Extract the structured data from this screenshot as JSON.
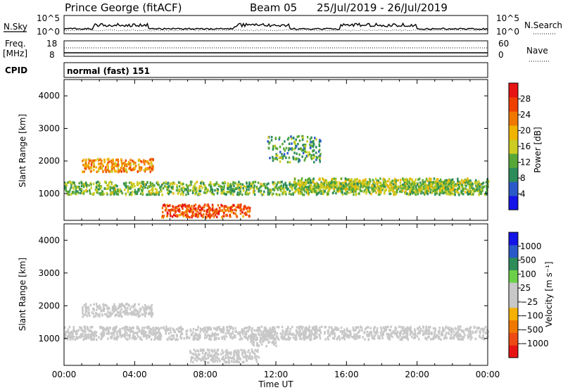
{
  "header": {
    "station": "Prince George (fitACF)",
    "beam": "Beam 05",
    "dates": "25/Jul/2019 - 26/Jul/2019"
  },
  "strip_labels": {
    "nsky": "N.Sky",
    "nsky_ticks": [
      "10^5",
      "10^0"
    ],
    "nsearch": "N.Search",
    "nsearch_ticks": [
      "10^5",
      "10^0"
    ],
    "freq_a": "Freq.",
    "freq_b": "[MHz]",
    "freq_ticks": [
      "18",
      "8"
    ],
    "nave": "Nave",
    "nave_ticks": [
      "60",
      "0"
    ],
    "cpid": "CPID",
    "cpid_value": "normal (fast) 151"
  },
  "colors": {
    "power_scale": [
      "#1414e8",
      "#2a5ac8",
      "#2c8c5a",
      "#58a838",
      "#cccc22",
      "#f0b400",
      "#f07800",
      "#f04000",
      "#e81414"
    ],
    "velocity_scale": [
      "#e81414",
      "#ee4a14",
      "#f07800",
      "#f5b000",
      "#c8c8c8",
      "#c8c8c8",
      "#6cd048",
      "#2c8c5a",
      "#2a5ac8",
      "#1414e8"
    ]
  },
  "chart_data": [
    {
      "type": "heatmap",
      "title": "Power",
      "ylabel": "Slant Range [km]",
      "ylim": [
        180,
        4500
      ],
      "yticks": [
        "4000",
        "3000",
        "2000",
        "1000"
      ],
      "xlim": [
        "00:00",
        "24:00"
      ],
      "colorbar": {
        "label": "Power [dB]",
        "ticks": [
          "28",
          "24",
          "20",
          "16",
          "12",
          "8",
          "4"
        ],
        "range": [
          0,
          30
        ]
      },
      "echo_regions": [
        {
          "t": [
            0.0,
            24.0
          ],
          "range_km": [
            1000,
            1400
          ],
          "value_db": 12
        },
        {
          "t": [
            1.0,
            5.0
          ],
          "range_km": [
            1700,
            2100
          ],
          "value_db": 20
        },
        {
          "t": [
            5.5,
            10.5
          ],
          "range_km": [
            300,
            700
          ],
          "value_db": 24
        },
        {
          "t": [
            13.0,
            24.0
          ],
          "range_km": [
            1100,
            1500
          ],
          "value_db": 14
        },
        {
          "t": [
            11.5,
            14.5
          ],
          "range_km": [
            2000,
            2800
          ],
          "value_db": 10
        }
      ]
    },
    {
      "type": "heatmap",
      "title": "Velocity",
      "ylabel": "Slant Range [km]",
      "ylim": [
        180,
        4500
      ],
      "yticks": [
        "4000",
        "3000",
        "2000",
        "1000"
      ],
      "xlim": [
        "00:00",
        "24:00"
      ],
      "xticks": [
        "00:00",
        "04:00",
        "08:00",
        "12:00",
        "16:00",
        "20:00",
        "00:00"
      ],
      "xlabel": "Time UT",
      "colorbar": {
        "label": "Velocity [m s⁻¹]",
        "ticks": [
          "1000",
          "500",
          "100",
          "25",
          "−25",
          "−100",
          "−500",
          "−1000"
        ],
        "range": [
          -1000,
          1000
        ]
      },
      "echo_regions": [
        {
          "t": [
            0.0,
            24.0
          ],
          "range_km": [
            1000,
            1400
          ],
          "value_ms": 0
        },
        {
          "t": [
            1.0,
            5.0
          ],
          "range_km": [
            1700,
            2100
          ],
          "value_ms": 0
        },
        {
          "t": [
            7.0,
            11.0
          ],
          "range_km": [
            300,
            700
          ],
          "value_ms": -100
        },
        {
          "t": [
            10.5,
            12.0
          ],
          "range_km": [
            800,
            1300
          ],
          "value_ms": 100
        }
      ]
    }
  ]
}
